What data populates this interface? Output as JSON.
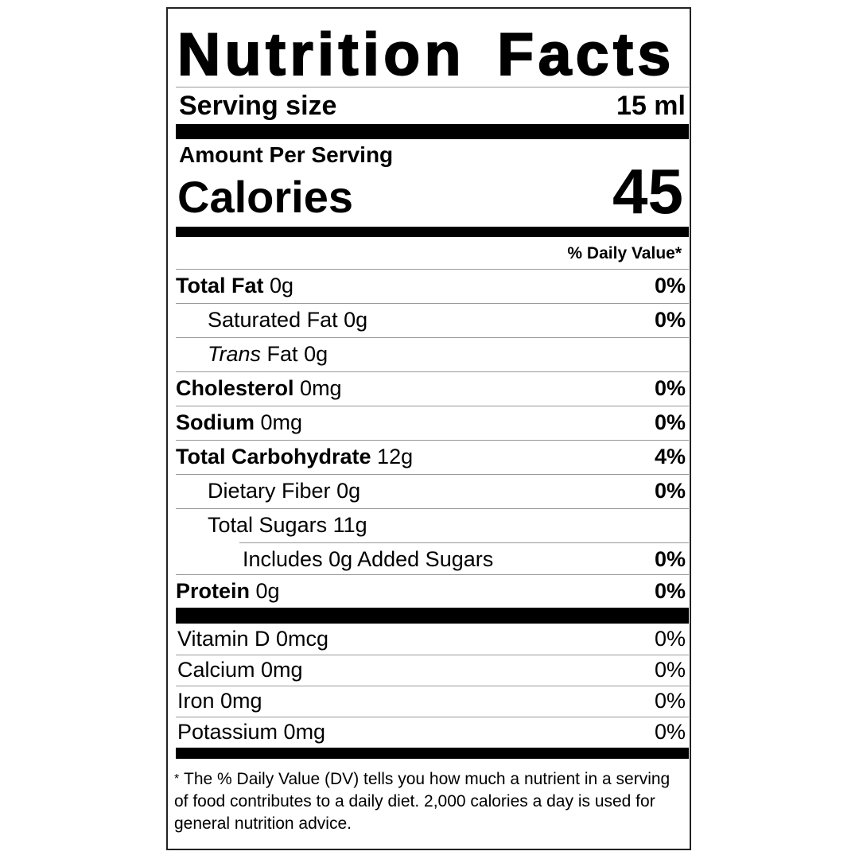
{
  "title": "Nutrition Facts",
  "serving": {
    "label": "Serving size",
    "value": "15 ml"
  },
  "amount_per_serving": "Amount Per Serving",
  "calories": {
    "label": "Calories",
    "value": "45"
  },
  "daily_value_header": "% Daily Value*",
  "nutrients": [
    {
      "name": "Total Fat",
      "amount": "0g",
      "dv": "0%",
      "bold": true,
      "indent": 0
    },
    {
      "name": "Saturated Fat",
      "amount": "0g",
      "dv": "0%",
      "bold": false,
      "indent": 1
    },
    {
      "name_italic": "Trans",
      "name": "Fat",
      "amount": "0g",
      "dv": "",
      "bold": false,
      "indent": 1
    },
    {
      "name": "Cholesterol",
      "amount": "0mg",
      "dv": "0%",
      "bold": true,
      "indent": 0
    },
    {
      "name": "Sodium",
      "amount": "0mg",
      "dv": "0%",
      "bold": true,
      "indent": 0
    },
    {
      "name": "Total Carbohydrate",
      "amount": "12g",
      "dv": "4%",
      "bold": true,
      "indent": 0
    },
    {
      "name": "Dietary Fiber",
      "amount": "0g",
      "dv": "0%",
      "bold": false,
      "indent": 1
    },
    {
      "name": "Total Sugars",
      "amount": "11g",
      "dv": "",
      "bold": false,
      "indent": 1
    },
    {
      "name": "Includes 0g Added Sugars",
      "amount": "",
      "dv": "0%",
      "bold": false,
      "indent": 2
    },
    {
      "name": "Protein",
      "amount": "0g",
      "dv": "0%",
      "bold": true,
      "indent": 0
    }
  ],
  "vitamins": [
    {
      "name": "Vitamin D 0mcg",
      "dv": "0%"
    },
    {
      "name": "Calcium 0mg",
      "dv": "0%"
    },
    {
      "name": "Iron 0mg",
      "dv": "0%"
    },
    {
      "name": "Potassium 0mg",
      "dv": "0%"
    }
  ],
  "footnote": {
    "star": "*",
    "text": "The % Daily Value (DV) tells you how much a nutrient in a serving of food contributes to a daily diet. 2,000 calories a day is used for general nutrition advice."
  }
}
